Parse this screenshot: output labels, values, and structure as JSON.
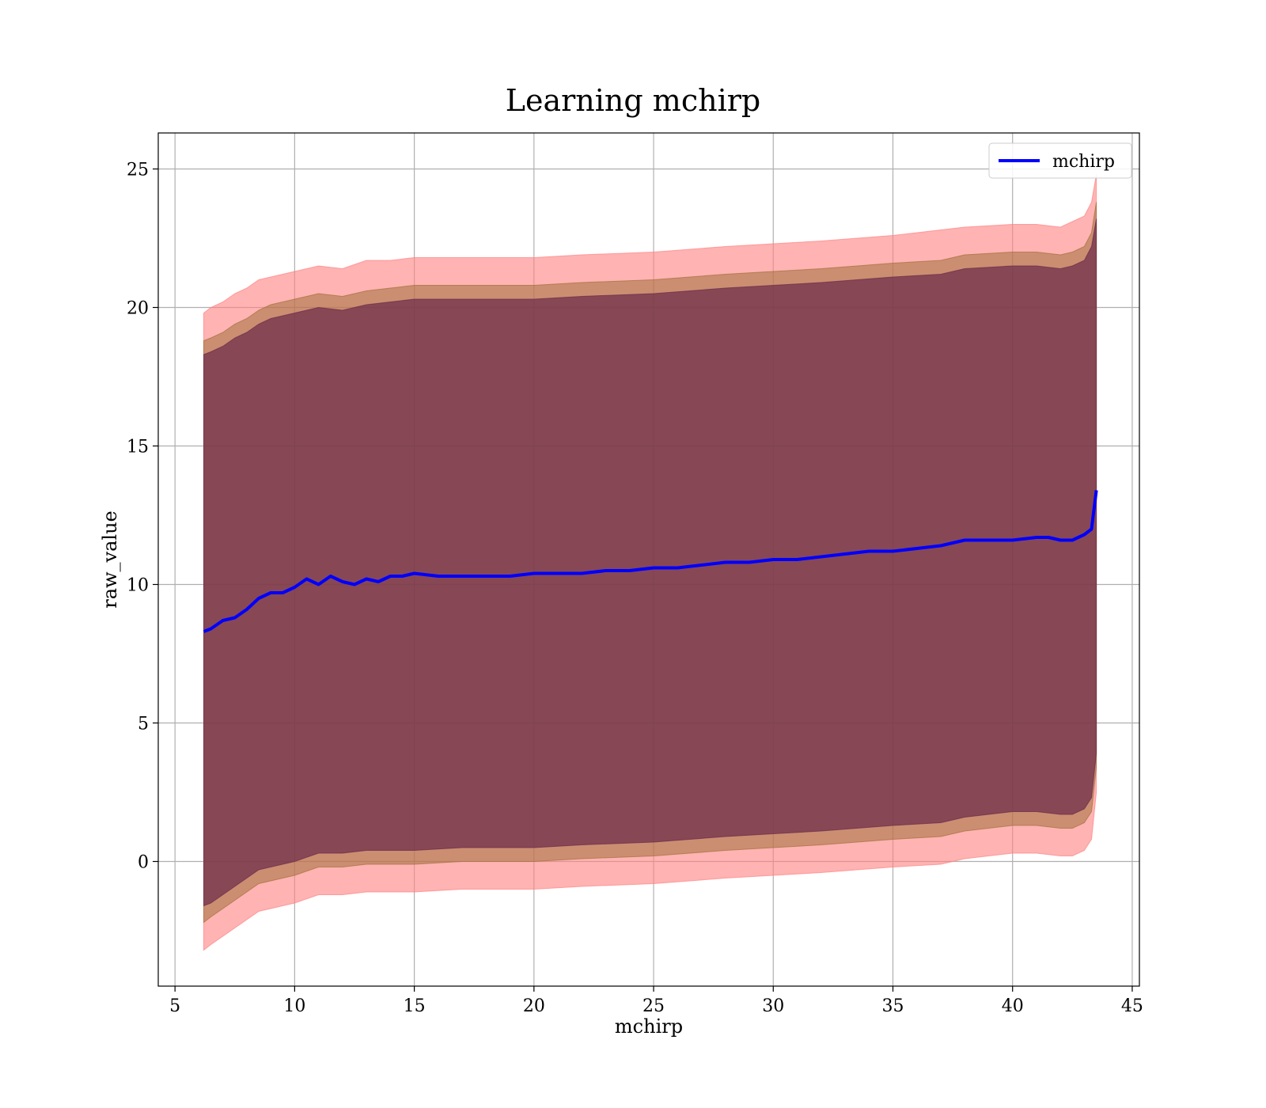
{
  "chart_data": {
    "type": "line",
    "title": "Learning mchirp",
    "xlabel": "mchirp",
    "ylabel": "raw_value",
    "xlim": [
      4.3,
      45.3
    ],
    "ylim": [
      -4.5,
      26.3
    ],
    "xticks": [
      5,
      10,
      15,
      20,
      25,
      30,
      35,
      40,
      45
    ],
    "yticks": [
      0,
      5,
      10,
      15,
      20,
      25
    ],
    "grid": true,
    "legend": {
      "placement": "upper right",
      "entries": [
        "mchirp"
      ]
    },
    "colors": {
      "line": "#0000ff",
      "outer_band": "#ff8080",
      "middle_band": "#a0703a",
      "inner_band": "#6a2a4a"
    },
    "series": [
      {
        "name": "mchirp",
        "x": [
          6.2,
          6.5,
          7,
          7.5,
          8,
          8.5,
          9,
          9.5,
          10,
          10.5,
          11,
          11.5,
          12,
          12.5,
          13,
          13.5,
          14,
          14.5,
          15,
          16,
          17,
          18,
          19,
          20,
          21,
          22,
          23,
          24,
          25,
          26,
          27,
          28,
          29,
          30,
          31,
          32,
          33,
          34,
          35,
          36,
          37,
          38,
          39,
          40,
          41,
          41.5,
          42,
          42.5,
          43,
          43.3,
          43.5
        ],
        "y": [
          8.3,
          8.4,
          8.7,
          8.8,
          9.1,
          9.5,
          9.7,
          9.7,
          9.9,
          10.2,
          10.0,
          10.3,
          10.1,
          10.0,
          10.2,
          10.1,
          10.3,
          10.3,
          10.4,
          10.3,
          10.3,
          10.3,
          10.3,
          10.4,
          10.4,
          10.4,
          10.5,
          10.5,
          10.6,
          10.6,
          10.7,
          10.8,
          10.8,
          10.9,
          10.9,
          11.0,
          11.1,
          11.2,
          11.2,
          11.3,
          11.4,
          11.6,
          11.6,
          11.6,
          11.7,
          11.7,
          11.6,
          11.6,
          11.8,
          12.0,
          13.4
        ]
      }
    ],
    "bands": [
      {
        "name": "outer",
        "x": [
          6.2,
          6.5,
          7,
          7.5,
          8,
          8.5,
          9,
          10,
          11,
          12,
          13,
          14,
          15,
          17,
          20,
          22,
          25,
          28,
          30,
          32,
          35,
          37,
          38,
          40,
          41,
          42,
          42.5,
          43,
          43.3,
          43.5
        ],
        "upper": [
          19.8,
          20.0,
          20.2,
          20.5,
          20.7,
          21.0,
          21.1,
          21.3,
          21.5,
          21.4,
          21.7,
          21.7,
          21.8,
          21.8,
          21.8,
          21.9,
          22.0,
          22.2,
          22.3,
          22.4,
          22.6,
          22.8,
          22.9,
          23.0,
          23.0,
          22.9,
          23.1,
          23.3,
          23.8,
          24.8
        ],
        "lower": [
          -3.2,
          -3.0,
          -2.7,
          -2.4,
          -2.1,
          -1.8,
          -1.7,
          -1.5,
          -1.2,
          -1.2,
          -1.1,
          -1.1,
          -1.1,
          -1.0,
          -1.0,
          -0.9,
          -0.8,
          -0.6,
          -0.5,
          -0.4,
          -0.2,
          -0.1,
          0.1,
          0.3,
          0.3,
          0.2,
          0.2,
          0.4,
          0.8,
          2.5
        ]
      },
      {
        "name": "middle",
        "x": [
          6.2,
          6.5,
          7,
          7.5,
          8,
          8.5,
          9,
          10,
          11,
          12,
          13,
          14,
          15,
          17,
          20,
          22,
          25,
          28,
          30,
          32,
          35,
          37,
          38,
          40,
          41,
          42,
          42.5,
          43,
          43.3,
          43.5
        ],
        "upper": [
          18.8,
          18.9,
          19.1,
          19.4,
          19.6,
          19.9,
          20.1,
          20.3,
          20.5,
          20.4,
          20.6,
          20.7,
          20.8,
          20.8,
          20.8,
          20.9,
          21.0,
          21.2,
          21.3,
          21.4,
          21.6,
          21.7,
          21.9,
          22.0,
          22.0,
          21.9,
          22.0,
          22.2,
          22.7,
          23.8
        ],
        "lower": [
          -2.2,
          -2.0,
          -1.7,
          -1.4,
          -1.1,
          -0.8,
          -0.7,
          -0.5,
          -0.2,
          -0.2,
          -0.1,
          -0.1,
          -0.1,
          0.0,
          0.0,
          0.1,
          0.2,
          0.4,
          0.5,
          0.6,
          0.8,
          0.9,
          1.1,
          1.3,
          1.3,
          1.2,
          1.2,
          1.4,
          1.8,
          3.4
        ]
      },
      {
        "name": "inner",
        "x": [
          6.2,
          6.5,
          7,
          7.5,
          8,
          8.5,
          9,
          10,
          11,
          12,
          13,
          14,
          15,
          17,
          20,
          22,
          25,
          28,
          30,
          32,
          35,
          37,
          38,
          40,
          41,
          42,
          42.5,
          43,
          43.3,
          43.5
        ],
        "upper": [
          18.3,
          18.4,
          18.6,
          18.9,
          19.1,
          19.4,
          19.6,
          19.8,
          20.0,
          19.9,
          20.1,
          20.2,
          20.3,
          20.3,
          20.3,
          20.4,
          20.5,
          20.7,
          20.8,
          20.9,
          21.1,
          21.2,
          21.4,
          21.5,
          21.5,
          21.4,
          21.5,
          21.7,
          22.2,
          23.2
        ],
        "lower": [
          -1.6,
          -1.5,
          -1.2,
          -0.9,
          -0.6,
          -0.3,
          -0.2,
          0.0,
          0.3,
          0.3,
          0.4,
          0.4,
          0.4,
          0.5,
          0.5,
          0.6,
          0.7,
          0.9,
          1.0,
          1.1,
          1.3,
          1.4,
          1.6,
          1.8,
          1.8,
          1.7,
          1.7,
          1.9,
          2.3,
          3.9
        ]
      }
    ]
  }
}
